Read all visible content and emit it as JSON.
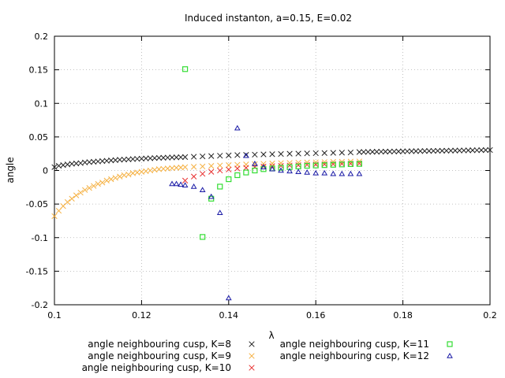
{
  "chart_data": {
    "type": "scatter",
    "title": "Induced instanton, a=0.15, E=0.02",
    "xlabel": "λ",
    "ylabel": "angle",
    "xlim": [
      0.1,
      0.2
    ],
    "ylim": [
      -0.2,
      0.2
    ],
    "xticks": [
      {
        "value": 0.1,
        "label": "0.1"
      },
      {
        "value": 0.12,
        "label": "0.12"
      },
      {
        "value": 0.14,
        "label": "0.14"
      },
      {
        "value": 0.16,
        "label": "0.16"
      },
      {
        "value": 0.18,
        "label": "0.18"
      },
      {
        "value": 0.2,
        "label": "0.2"
      }
    ],
    "yticks": [
      {
        "value": 0.2,
        "label": "0.2"
      },
      {
        "value": 0.15,
        "label": "0.15"
      },
      {
        "value": 0.1,
        "label": "0.1"
      },
      {
        "value": 0.05,
        "label": "0.05"
      },
      {
        "value": 0,
        "label": "0"
      },
      {
        "value": -0.05,
        "label": "-0.05"
      },
      {
        "value": -0.1,
        "label": "-0.1"
      },
      {
        "value": -0.15,
        "label": "-0.15"
      },
      {
        "value": -0.2,
        "label": "-0.2"
      }
    ],
    "grid": true,
    "legend_position": "bottom",
    "series": [
      {
        "name": "angle neighbouring cusp, K=8",
        "marker": "cross",
        "color": "#222222",
        "points": [
          [
            0.1,
            0.005
          ],
          [
            0.101,
            0.007
          ],
          [
            0.102,
            0.008
          ],
          [
            0.103,
            0.009
          ],
          [
            0.104,
            0.01
          ],
          [
            0.105,
            0.0105
          ],
          [
            0.106,
            0.011
          ],
          [
            0.107,
            0.012
          ],
          [
            0.108,
            0.0125
          ],
          [
            0.109,
            0.013
          ],
          [
            0.11,
            0.0135
          ],
          [
            0.111,
            0.014
          ],
          [
            0.112,
            0.0145
          ],
          [
            0.113,
            0.015
          ],
          [
            0.114,
            0.0155
          ],
          [
            0.115,
            0.016
          ],
          [
            0.116,
            0.0163
          ],
          [
            0.117,
            0.0166
          ],
          [
            0.118,
            0.017
          ],
          [
            0.119,
            0.0173
          ],
          [
            0.12,
            0.0176
          ],
          [
            0.121,
            0.018
          ],
          [
            0.122,
            0.0182
          ],
          [
            0.123,
            0.0185
          ],
          [
            0.124,
            0.0188
          ],
          [
            0.125,
            0.019
          ],
          [
            0.126,
            0.0192
          ],
          [
            0.127,
            0.0194
          ],
          [
            0.128,
            0.0196
          ],
          [
            0.129,
            0.0198
          ],
          [
            0.13,
            0.02
          ],
          [
            0.132,
            0.0205
          ],
          [
            0.134,
            0.021
          ],
          [
            0.136,
            0.0215
          ],
          [
            0.138,
            0.022
          ],
          [
            0.14,
            0.0225
          ],
          [
            0.142,
            0.023
          ],
          [
            0.144,
            0.0233
          ],
          [
            0.146,
            0.0236
          ],
          [
            0.148,
            0.024
          ],
          [
            0.15,
            0.0243
          ],
          [
            0.152,
            0.0246
          ],
          [
            0.154,
            0.025
          ],
          [
            0.156,
            0.0252
          ],
          [
            0.158,
            0.0255
          ],
          [
            0.16,
            0.0258
          ],
          [
            0.162,
            0.026
          ],
          [
            0.164,
            0.0263
          ],
          [
            0.166,
            0.0266
          ],
          [
            0.168,
            0.0268
          ],
          [
            0.17,
            0.0275
          ],
          [
            0.171,
            0.0276
          ],
          [
            0.172,
            0.0277
          ],
          [
            0.173,
            0.0278
          ],
          [
            0.174,
            0.0279
          ],
          [
            0.175,
            0.028
          ],
          [
            0.176,
            0.0281
          ],
          [
            0.177,
            0.0282
          ],
          [
            0.178,
            0.0283
          ],
          [
            0.179,
            0.0284
          ],
          [
            0.18,
            0.0285
          ],
          [
            0.181,
            0.0286
          ],
          [
            0.182,
            0.0287
          ],
          [
            0.183,
            0.0288
          ],
          [
            0.184,
            0.0289
          ],
          [
            0.185,
            0.029
          ],
          [
            0.186,
            0.0291
          ],
          [
            0.187,
            0.0292
          ],
          [
            0.188,
            0.0293
          ],
          [
            0.189,
            0.0294
          ],
          [
            0.19,
            0.0295
          ],
          [
            0.191,
            0.0296
          ],
          [
            0.192,
            0.0297
          ],
          [
            0.193,
            0.0298
          ],
          [
            0.194,
            0.0299
          ],
          [
            0.195,
            0.03
          ],
          [
            0.196,
            0.0301
          ],
          [
            0.197,
            0.0302
          ],
          [
            0.198,
            0.0303
          ],
          [
            0.199,
            0.0304
          ],
          [
            0.2,
            0.0305
          ]
        ]
      },
      {
        "name": "angle neighbouring cusp, K=9",
        "marker": "cross",
        "color": "#f5b041",
        "points": [
          [
            0.1,
            -0.068
          ],
          [
            0.101,
            -0.06
          ],
          [
            0.102,
            -0.053
          ],
          [
            0.103,
            -0.047
          ],
          [
            0.104,
            -0.042
          ],
          [
            0.105,
            -0.037
          ],
          [
            0.106,
            -0.033
          ],
          [
            0.107,
            -0.029
          ],
          [
            0.108,
            -0.026
          ],
          [
            0.109,
            -0.023
          ],
          [
            0.11,
            -0.02
          ],
          [
            0.111,
            -0.018
          ],
          [
            0.112,
            -0.015
          ],
          [
            0.113,
            -0.013
          ],
          [
            0.114,
            -0.011
          ],
          [
            0.115,
            -0.009
          ],
          [
            0.116,
            -0.007
          ],
          [
            0.117,
            -0.006
          ],
          [
            0.118,
            -0.004
          ],
          [
            0.119,
            -0.003
          ],
          [
            0.12,
            -0.002
          ],
          [
            0.121,
            -0.001
          ],
          [
            0.122,
            0.0
          ],
          [
            0.123,
            0.001
          ],
          [
            0.124,
            0.002
          ],
          [
            0.125,
            0.0025
          ],
          [
            0.126,
            0.003
          ],
          [
            0.127,
            0.0035
          ],
          [
            0.128,
            0.004
          ],
          [
            0.129,
            0.0045
          ],
          [
            0.13,
            0.005
          ],
          [
            0.132,
            0.0055
          ],
          [
            0.134,
            0.006
          ],
          [
            0.136,
            0.0068
          ],
          [
            0.138,
            0.0075
          ],
          [
            0.14,
            0.008
          ],
          [
            0.142,
            0.0085
          ],
          [
            0.144,
            0.009
          ],
          [
            0.146,
            0.0095
          ],
          [
            0.148,
            0.01
          ],
          [
            0.15,
            0.0105
          ],
          [
            0.152,
            0.011
          ],
          [
            0.154,
            0.0113
          ],
          [
            0.156,
            0.0116
          ],
          [
            0.158,
            0.012
          ],
          [
            0.16,
            0.0122
          ],
          [
            0.162,
            0.0125
          ],
          [
            0.164,
            0.0128
          ],
          [
            0.166,
            0.013
          ],
          [
            0.168,
            0.0133
          ],
          [
            0.17,
            0.0135
          ]
        ]
      },
      {
        "name": "angle neighbouring cusp, K=10",
        "marker": "cross",
        "color": "#e83030",
        "points": [
          [
            0.13,
            -0.015
          ],
          [
            0.132,
            -0.009
          ],
          [
            0.134,
            -0.005
          ],
          [
            0.136,
            -0.002
          ],
          [
            0.138,
            0.0
          ],
          [
            0.14,
            0.0015
          ],
          [
            0.142,
            0.003
          ],
          [
            0.144,
            0.004
          ],
          [
            0.146,
            0.005
          ],
          [
            0.148,
            0.006
          ],
          [
            0.15,
            0.0065
          ],
          [
            0.152,
            0.007
          ],
          [
            0.154,
            0.0075
          ],
          [
            0.156,
            0.008
          ],
          [
            0.158,
            0.0085
          ],
          [
            0.16,
            0.009
          ],
          [
            0.162,
            0.0093
          ],
          [
            0.164,
            0.0096
          ],
          [
            0.166,
            0.01
          ],
          [
            0.168,
            0.0103
          ],
          [
            0.17,
            0.0106
          ]
        ]
      },
      {
        "name": "angle neighbouring cusp, K=11",
        "marker": "square",
        "color": "#33dd33",
        "points": [
          [
            0.13,
            0.151
          ],
          [
            0.134,
            -0.099
          ],
          [
            0.136,
            -0.042
          ],
          [
            0.138,
            -0.024
          ],
          [
            0.14,
            -0.013
          ],
          [
            0.142,
            -0.007
          ],
          [
            0.144,
            -0.003
          ],
          [
            0.146,
            0.0
          ],
          [
            0.148,
            0.002
          ],
          [
            0.15,
            0.003
          ],
          [
            0.152,
            0.004
          ],
          [
            0.154,
            0.005
          ],
          [
            0.156,
            0.006
          ],
          [
            0.158,
            0.007
          ],
          [
            0.16,
            0.0075
          ],
          [
            0.162,
            0.008
          ],
          [
            0.164,
            0.0085
          ],
          [
            0.166,
            0.009
          ],
          [
            0.168,
            0.0095
          ],
          [
            0.17,
            0.0098
          ]
        ]
      },
      {
        "name": "angle neighbouring cusp, K=12",
        "marker": "triangle",
        "color": "#1a1aa6",
        "points": [
          [
            0.127,
            -0.02
          ],
          [
            0.128,
            -0.02
          ],
          [
            0.129,
            -0.021
          ],
          [
            0.13,
            -0.022
          ],
          [
            0.132,
            -0.024
          ],
          [
            0.134,
            -0.029
          ],
          [
            0.136,
            -0.039
          ],
          [
            0.138,
            -0.063
          ],
          [
            0.14,
            -0.19
          ],
          [
            0.142,
            0.063
          ],
          [
            0.144,
            0.022
          ],
          [
            0.146,
            0.01
          ],
          [
            0.148,
            0.005
          ],
          [
            0.15,
            0.002
          ],
          [
            0.152,
            0.0
          ],
          [
            0.154,
            -0.001
          ],
          [
            0.156,
            -0.002
          ],
          [
            0.158,
            -0.003
          ],
          [
            0.16,
            -0.004
          ],
          [
            0.162,
            -0.004
          ],
          [
            0.164,
            -0.005
          ],
          [
            0.166,
            -0.005
          ],
          [
            0.168,
            -0.005
          ],
          [
            0.17,
            -0.005
          ]
        ]
      }
    ]
  }
}
